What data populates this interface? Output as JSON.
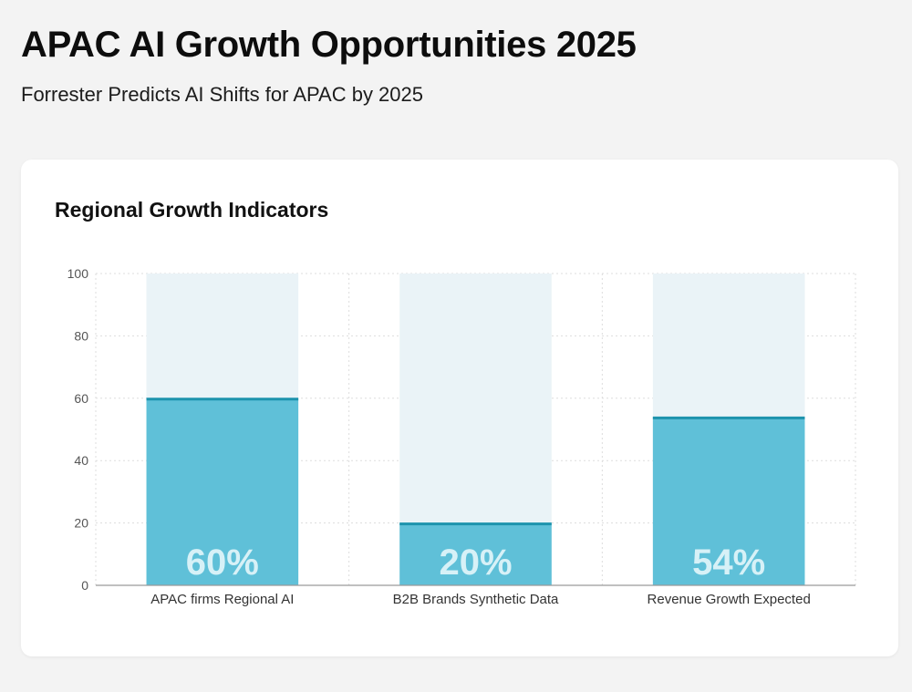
{
  "header": {
    "title": "APAC AI Growth Opportunities 2025",
    "subtitle": "Forrester Predicts AI Shifts for APAC by 2025"
  },
  "card": {
    "title": "Regional Growth Indicators"
  },
  "colors": {
    "bar_fill": "#5fc0d8",
    "bar_top_line": "#1d93ad",
    "bar_background": "#eaf3f7",
    "grid": "#dddddd",
    "axis": "#9a9a9a",
    "value_text": "#d7f1f7"
  },
  "chart_data": {
    "type": "bar",
    "title": "Regional Growth Indicators",
    "categories": [
      "APAC firms Regional AI",
      "B2B Brands Synthetic Data",
      "Revenue Growth Expected"
    ],
    "values": [
      60,
      20,
      54
    ],
    "value_labels": [
      "60%",
      "20%",
      "54%"
    ],
    "xlabel": "",
    "ylabel": "",
    "ylim": [
      0,
      100
    ],
    "yticks": [
      0,
      20,
      40,
      60,
      80,
      100
    ],
    "grid": true,
    "legend": "none"
  }
}
